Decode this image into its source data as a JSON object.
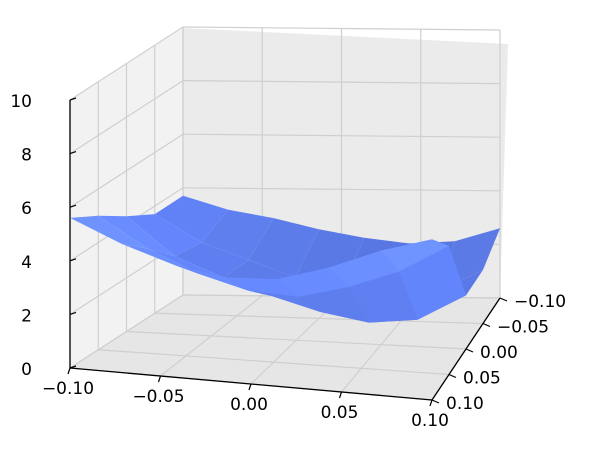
{
  "chart_data": {
    "type": "surface3d",
    "title": "",
    "xlabel": "",
    "ylabel": "",
    "zlabel": "",
    "x_range": [
      -0.1,
      0.1
    ],
    "y_range": [
      -0.1,
      0.1
    ],
    "z_range": [
      0,
      10
    ],
    "x_ticks": [
      "−0.10",
      "−0.05",
      "0.00",
      "0.05",
      "0.10"
    ],
    "y_ticks": [
      "−0.10",
      "−0.05",
      "0.00",
      "0.05",
      "0.10"
    ],
    "z_ticks": [
      "0",
      "2",
      "4",
      "6",
      "8",
      "10"
    ],
    "surface_z": [
      [
        3.7,
        3.2,
        2.9,
        2.5,
        2.2,
        2.0,
        2.1,
        2.6
      ],
      [
        3.7,
        2.7,
        2.1,
        1.5,
        1.2,
        1.0,
        1.1,
        2.0
      ],
      [
        4.3,
        2.9,
        2.2,
        1.6,
        1.1,
        0.8,
        1.0,
        2.0
      ],
      [
        5.0,
        3.9,
        3.1,
        2.6,
        2.5,
        3.0,
        3.7,
        4.8
      ],
      [
        5.6,
        4.8,
        4.2,
        3.9,
        4.0,
        4.6,
        5.4,
        6.0
      ]
    ],
    "surface_color": "#5f7ff0",
    "grid": true
  }
}
